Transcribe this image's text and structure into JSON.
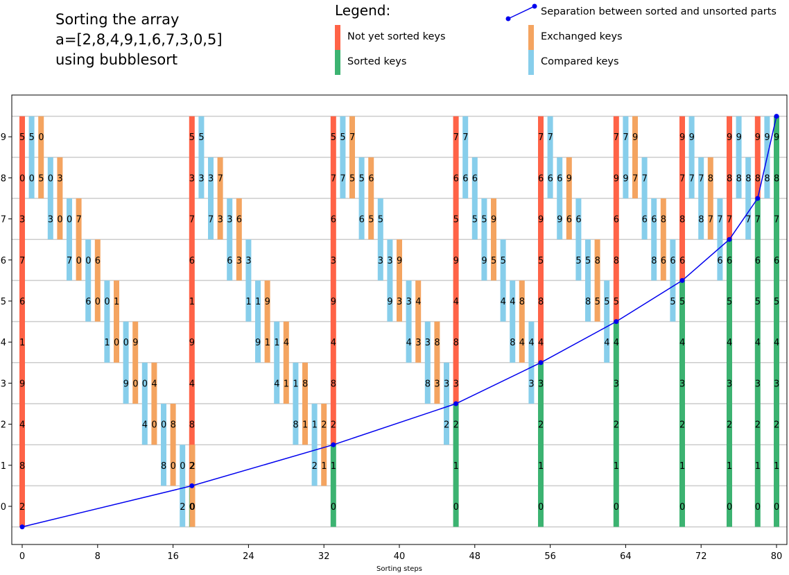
{
  "title_lines": [
    "Sorting the array",
    "a=[2,8,4,9,1,6,7,3,0,5]",
    "using bubblesort"
  ],
  "legend": {
    "title": "Legend:",
    "items": [
      {
        "label": "Not yet sorted keys",
        "color": "#ff6347"
      },
      {
        "label": "Sorted keys",
        "color": "#3cb371"
      },
      {
        "label": "Exchanged keys",
        "color": "#f4a460"
      },
      {
        "label": "Compared keys",
        "color": "#87ceeb"
      },
      {
        "label": "Separation between sorted and unsorted parts",
        "color": "#0000ee"
      }
    ]
  },
  "chart_data": {
    "type": "bar",
    "title": "Sorting the array a=[2,8,4,9,1,6,7,3,0,5] using bubblesort",
    "xlabel": "Sorting steps",
    "ylabel": "",
    "xlim": [
      -0.8,
      81
    ],
    "ylim": [
      -0.6,
      9.9
    ],
    "xticks": [
      0,
      8,
      16,
      24,
      32,
      40,
      48,
      56,
      64,
      72,
      80
    ],
    "yticks": [
      0,
      1,
      2,
      3,
      4,
      5,
      6,
      7,
      8,
      9
    ],
    "grid": "horizontal lines at half-integers",
    "colors": {
      "unsorted": "#ff6347",
      "sorted": "#3cb371",
      "exchanged": "#f4a460",
      "compared": "#87ceeb",
      "separation": "#0000ee"
    },
    "full_columns": [
      {
        "x": 0,
        "keys": [
          2,
          8,
          4,
          9,
          1,
          6,
          7,
          3,
          0,
          5
        ],
        "sorted_count": 0
      },
      {
        "x": 18,
        "keys": [
          0,
          2,
          8,
          4,
          9,
          1,
          6,
          7,
          3,
          5
        ],
        "sorted_count": 1
      },
      {
        "x": 33,
        "keys": [
          0,
          1,
          2,
          8,
          4,
          9,
          3,
          6,
          7,
          5
        ],
        "sorted_count": 2
      },
      {
        "x": 46,
        "keys": [
          0,
          1,
          2,
          3,
          8,
          4,
          9,
          5,
          6,
          7
        ],
        "sorted_count": 3
      },
      {
        "x": 55,
        "keys": [
          0,
          1,
          2,
          3,
          4,
          8,
          5,
          9,
          6,
          7
        ],
        "sorted_count": 4
      },
      {
        "x": 63,
        "keys": [
          0,
          1,
          2,
          3,
          4,
          5,
          8,
          6,
          9,
          7
        ],
        "sorted_count": 5
      },
      {
        "x": 70,
        "keys": [
          0,
          1,
          2,
          3,
          4,
          5,
          6,
          8,
          7,
          9
        ],
        "sorted_count": 6
      },
      {
        "x": 75,
        "keys": [
          0,
          1,
          2,
          3,
          4,
          5,
          6,
          7,
          8,
          9
        ],
        "sorted_count": 7
      },
      {
        "x": 78,
        "keys": [
          0,
          1,
          2,
          3,
          4,
          5,
          6,
          7,
          8,
          9
        ],
        "sorted_count": 8
      },
      {
        "x": 80,
        "keys": [
          0,
          1,
          2,
          3,
          4,
          5,
          6,
          7,
          8,
          9
        ],
        "sorted_count": 10
      }
    ],
    "pair_bars": [
      {
        "x": 1,
        "pos": 8,
        "type": "compared",
        "top": 5,
        "bottom": 0
      },
      {
        "x": 2,
        "pos": 8,
        "type": "exchanged",
        "top": 0,
        "bottom": 5
      },
      {
        "x": 3,
        "pos": 7,
        "type": "compared",
        "top": 0,
        "bottom": 3
      },
      {
        "x": 4,
        "pos": 7,
        "type": "exchanged",
        "top": 3,
        "bottom": 0
      },
      {
        "x": 5,
        "pos": 6,
        "type": "compared",
        "top": 0,
        "bottom": 7
      },
      {
        "x": 6,
        "pos": 6,
        "type": "exchanged",
        "top": 7,
        "bottom": 0
      },
      {
        "x": 7,
        "pos": 5,
        "type": "compared",
        "top": 0,
        "bottom": 6
      },
      {
        "x": 8,
        "pos": 5,
        "type": "exchanged",
        "top": 6,
        "bottom": 0
      },
      {
        "x": 9,
        "pos": 4,
        "type": "compared",
        "top": 0,
        "bottom": 1
      },
      {
        "x": 10,
        "pos": 4,
        "type": "exchanged",
        "top": 1,
        "bottom": 0
      },
      {
        "x": 11,
        "pos": 3,
        "type": "compared",
        "top": 0,
        "bottom": 9
      },
      {
        "x": 12,
        "pos": 3,
        "type": "exchanged",
        "top": 9,
        "bottom": 0
      },
      {
        "x": 13,
        "pos": 2,
        "type": "compared",
        "top": 0,
        "bottom": 4
      },
      {
        "x": 14,
        "pos": 2,
        "type": "exchanged",
        "top": 4,
        "bottom": 0
      },
      {
        "x": 15,
        "pos": 1,
        "type": "compared",
        "top": 0,
        "bottom": 8
      },
      {
        "x": 16,
        "pos": 1,
        "type": "exchanged",
        "top": 8,
        "bottom": 0
      },
      {
        "x": 17,
        "pos": 0,
        "type": "compared",
        "top": 0,
        "bottom": 2
      },
      {
        "x": 18.05,
        "pos": 0,
        "type": "exchanged",
        "top": 2,
        "bottom": 0
      },
      {
        "x": 19,
        "pos": 8,
        "type": "compared",
        "top": 5,
        "bottom": 3
      },
      {
        "x": 20,
        "pos": 7,
        "type": "compared",
        "top": 3,
        "bottom": 7
      },
      {
        "x": 21,
        "pos": 7,
        "type": "exchanged",
        "top": 7,
        "bottom": 3
      },
      {
        "x": 22,
        "pos": 6,
        "type": "compared",
        "top": 3,
        "bottom": 6
      },
      {
        "x": 23,
        "pos": 6,
        "type": "exchanged",
        "top": 6,
        "bottom": 3
      },
      {
        "x": 24,
        "pos": 5,
        "type": "compared",
        "top": 3,
        "bottom": 1
      },
      {
        "x": 25,
        "pos": 4,
        "type": "compared",
        "top": 1,
        "bottom": 9
      },
      {
        "x": 26,
        "pos": 4,
        "type": "exchanged",
        "top": 9,
        "bottom": 1
      },
      {
        "x": 27,
        "pos": 3,
        "type": "compared",
        "top": 1,
        "bottom": 4
      },
      {
        "x": 28,
        "pos": 3,
        "type": "exchanged",
        "top": 4,
        "bottom": 1
      },
      {
        "x": 29,
        "pos": 2,
        "type": "compared",
        "top": 1,
        "bottom": 8
      },
      {
        "x": 30,
        "pos": 2,
        "type": "exchanged",
        "top": 8,
        "bottom": 1
      },
      {
        "x": 31,
        "pos": 1,
        "type": "compared",
        "top": 1,
        "bottom": 2
      },
      {
        "x": 32,
        "pos": 1,
        "type": "exchanged",
        "top": 2,
        "bottom": 1
      },
      {
        "x": 34,
        "pos": 8,
        "type": "compared",
        "top": 5,
        "bottom": 7
      },
      {
        "x": 35,
        "pos": 8,
        "type": "exchanged",
        "top": 7,
        "bottom": 5
      },
      {
        "x": 36,
        "pos": 7,
        "type": "compared",
        "top": 5,
        "bottom": 6
      },
      {
        "x": 37,
        "pos": 7,
        "type": "exchanged",
        "top": 6,
        "bottom": 5
      },
      {
        "x": 38,
        "pos": 6,
        "type": "compared",
        "top": 5,
        "bottom": 3
      },
      {
        "x": 39,
        "pos": 5,
        "type": "compared",
        "top": 3,
        "bottom": 9
      },
      {
        "x": 40,
        "pos": 5,
        "type": "exchanged",
        "top": 9,
        "bottom": 3
      },
      {
        "x": 41,
        "pos": 4,
        "type": "compared",
        "top": 3,
        "bottom": 4
      },
      {
        "x": 42,
        "pos": 4,
        "type": "exchanged",
        "top": 4,
        "bottom": 3
      },
      {
        "x": 43,
        "pos": 3,
        "type": "compared",
        "top": 3,
        "bottom": 8
      },
      {
        "x": 44,
        "pos": 3,
        "type": "exchanged",
        "top": 8,
        "bottom": 3
      },
      {
        "x": 45,
        "pos": 2,
        "type": "compared",
        "top": 3,
        "bottom": 2
      },
      {
        "x": 47,
        "pos": 8,
        "type": "compared",
        "top": 7,
        "bottom": 6
      },
      {
        "x": 48,
        "pos": 7,
        "type": "compared",
        "top": 6,
        "bottom": 5
      },
      {
        "x": 49,
        "pos": 6,
        "type": "compared",
        "top": 5,
        "bottom": 9
      },
      {
        "x": 50,
        "pos": 6,
        "type": "exchanged",
        "top": 9,
        "bottom": 5
      },
      {
        "x": 51,
        "pos": 5,
        "type": "compared",
        "top": 5,
        "bottom": 4
      },
      {
        "x": 52,
        "pos": 4,
        "type": "compared",
        "top": 4,
        "bottom": 8
      },
      {
        "x": 53,
        "pos": 4,
        "type": "exchanged",
        "top": 8,
        "bottom": 4
      },
      {
        "x": 54,
        "pos": 3,
        "type": "compared",
        "top": 4,
        "bottom": 3
      },
      {
        "x": 56,
        "pos": 8,
        "type": "compared",
        "top": 7,
        "bottom": 6
      },
      {
        "x": 57,
        "pos": 7,
        "type": "compared",
        "top": 6,
        "bottom": 9
      },
      {
        "x": 58,
        "pos": 7,
        "type": "exchanged",
        "top": 9,
        "bottom": 6
      },
      {
        "x": 59,
        "pos": 6,
        "type": "compared",
        "top": 6,
        "bottom": 5
      },
      {
        "x": 60,
        "pos": 5,
        "type": "compared",
        "top": 5,
        "bottom": 8
      },
      {
        "x": 61,
        "pos": 5,
        "type": "exchanged",
        "top": 8,
        "bottom": 5
      },
      {
        "x": 62,
        "pos": 4,
        "type": "compared",
        "top": 5,
        "bottom": 4
      },
      {
        "x": 64,
        "pos": 8,
        "type": "compared",
        "top": 7,
        "bottom": 9
      },
      {
        "x": 65,
        "pos": 8,
        "type": "exchanged",
        "top": 9,
        "bottom": 7
      },
      {
        "x": 66,
        "pos": 7,
        "type": "compared",
        "top": 7,
        "bottom": 6
      },
      {
        "x": 67,
        "pos": 6,
        "type": "compared",
        "top": 6,
        "bottom": 8
      },
      {
        "x": 68,
        "pos": 6,
        "type": "exchanged",
        "top": 8,
        "bottom": 6
      },
      {
        "x": 69,
        "pos": 5,
        "type": "compared",
        "top": 6,
        "bottom": 5
      },
      {
        "x": 71,
        "pos": 8,
        "type": "compared",
        "top": 9,
        "bottom": 7
      },
      {
        "x": 72,
        "pos": 7,
        "type": "compared",
        "top": 7,
        "bottom": 8
      },
      {
        "x": 73,
        "pos": 7,
        "type": "exchanged",
        "top": 8,
        "bottom": 7
      },
      {
        "x": 74,
        "pos": 6,
        "type": "compared",
        "top": 7,
        "bottom": 6
      },
      {
        "x": 76,
        "pos": 8,
        "type": "compared",
        "top": 9,
        "bottom": 8
      },
      {
        "x": 77,
        "pos": 7,
        "type": "compared",
        "top": 8,
        "bottom": 7
      },
      {
        "x": 79,
        "pos": 8,
        "type": "compared",
        "top": 9,
        "bottom": 8
      }
    ],
    "separation_line": {
      "x": [
        0,
        18,
        33,
        46,
        55,
        63,
        70,
        75,
        78,
        80
      ],
      "y": [
        -0.5,
        0.5,
        1.5,
        2.5,
        3.5,
        4.5,
        5.5,
        6.5,
        7.5,
        9.5
      ]
    }
  }
}
